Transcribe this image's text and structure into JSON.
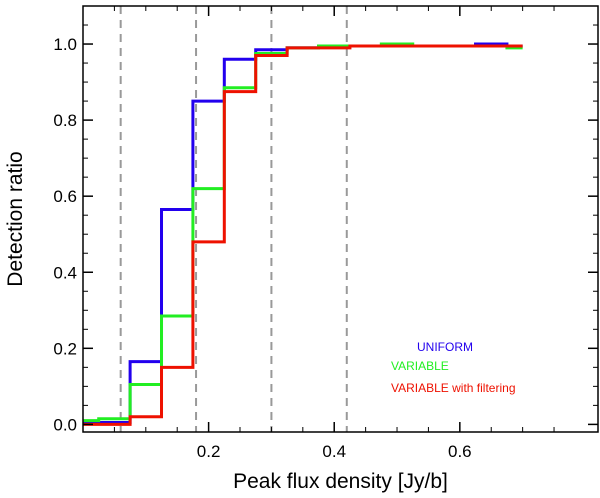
{
  "chart_data": {
    "type": "line",
    "style": "step",
    "title": "",
    "xlabel": "Peak flux density [Jy/b]",
    "ylabel": "Detection ratio",
    "xlim": [
      0.0,
      0.82
    ],
    "ylim": [
      -0.02,
      1.1
    ],
    "x_ticks": [
      0.2,
      0.4,
      0.6
    ],
    "x_tick_labels": [
      "0.2",
      "0.4",
      "0.6"
    ],
    "y_ticks": [
      0.0,
      0.2,
      0.4,
      0.6,
      0.8,
      1.0
    ],
    "y_tick_labels": [
      "0.0",
      "0.2",
      "0.4",
      "0.6",
      "0.8",
      "1.0"
    ],
    "vertical_lines": [
      0.06,
      0.18,
      0.3,
      0.42
    ],
    "bin_edges": [
      0.0,
      0.025,
      0.075,
      0.125,
      0.175,
      0.225,
      0.275,
      0.325,
      0.375,
      0.425,
      0.475,
      0.525,
      0.575,
      0.625,
      0.675,
      0.7
    ],
    "series": [
      {
        "name": "UNIFORM",
        "color": "#2200ee",
        "values": [
          0.005,
          0.005,
          0.165,
          0.565,
          0.85,
          0.96,
          0.985,
          0.99,
          0.995,
          0.995,
          0.995,
          0.995,
          0.995,
          1.0,
          0.995
        ]
      },
      {
        "name": "VARIABLE",
        "color": "#22ee22",
        "values": [
          0.01,
          0.015,
          0.105,
          0.285,
          0.62,
          0.885,
          0.975,
          0.99,
          0.995,
          0.995,
          1.0,
          0.995,
          0.995,
          0.995,
          0.99
        ]
      },
      {
        "name": "VARIABLE with filtering",
        "color": "#ee1100",
        "values": [
          0.0,
          0.0,
          0.02,
          0.15,
          0.48,
          0.875,
          0.97,
          0.99,
          0.99,
          0.995,
          0.995,
          0.995,
          0.995,
          0.995,
          0.995
        ]
      }
    ],
    "legend": {
      "position": "bottom-right",
      "labels": [
        "UNIFORM",
        "VARIABLE",
        "VARIABLE with filtering"
      ]
    }
  }
}
